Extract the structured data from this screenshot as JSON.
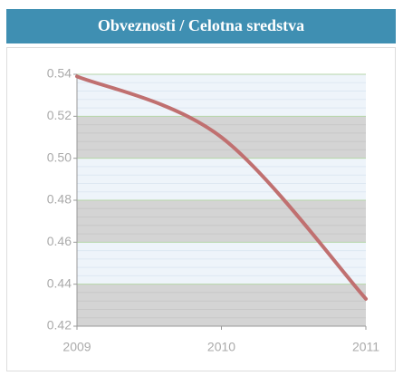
{
  "chart_data": {
    "type": "line",
    "title": "Obveznosti / Celotna sredstva",
    "x": [
      2009,
      2010,
      2011
    ],
    "series": [
      {
        "name": "Obveznosti / Celotna sredstva",
        "color": "#c07070",
        "values": [
          0.539,
          0.51,
          0.433
        ]
      }
    ],
    "xlim": [
      2009,
      2011
    ],
    "xticks": [
      2009,
      2010,
      2011
    ],
    "ylim": [
      0.42,
      0.54
    ],
    "yticks": [
      0.42,
      0.44,
      0.46,
      0.48,
      {
        "value": 0.5,
        "label": "0.50"
      },
      0.52,
      0.54
    ],
    "grid": true
  }
}
